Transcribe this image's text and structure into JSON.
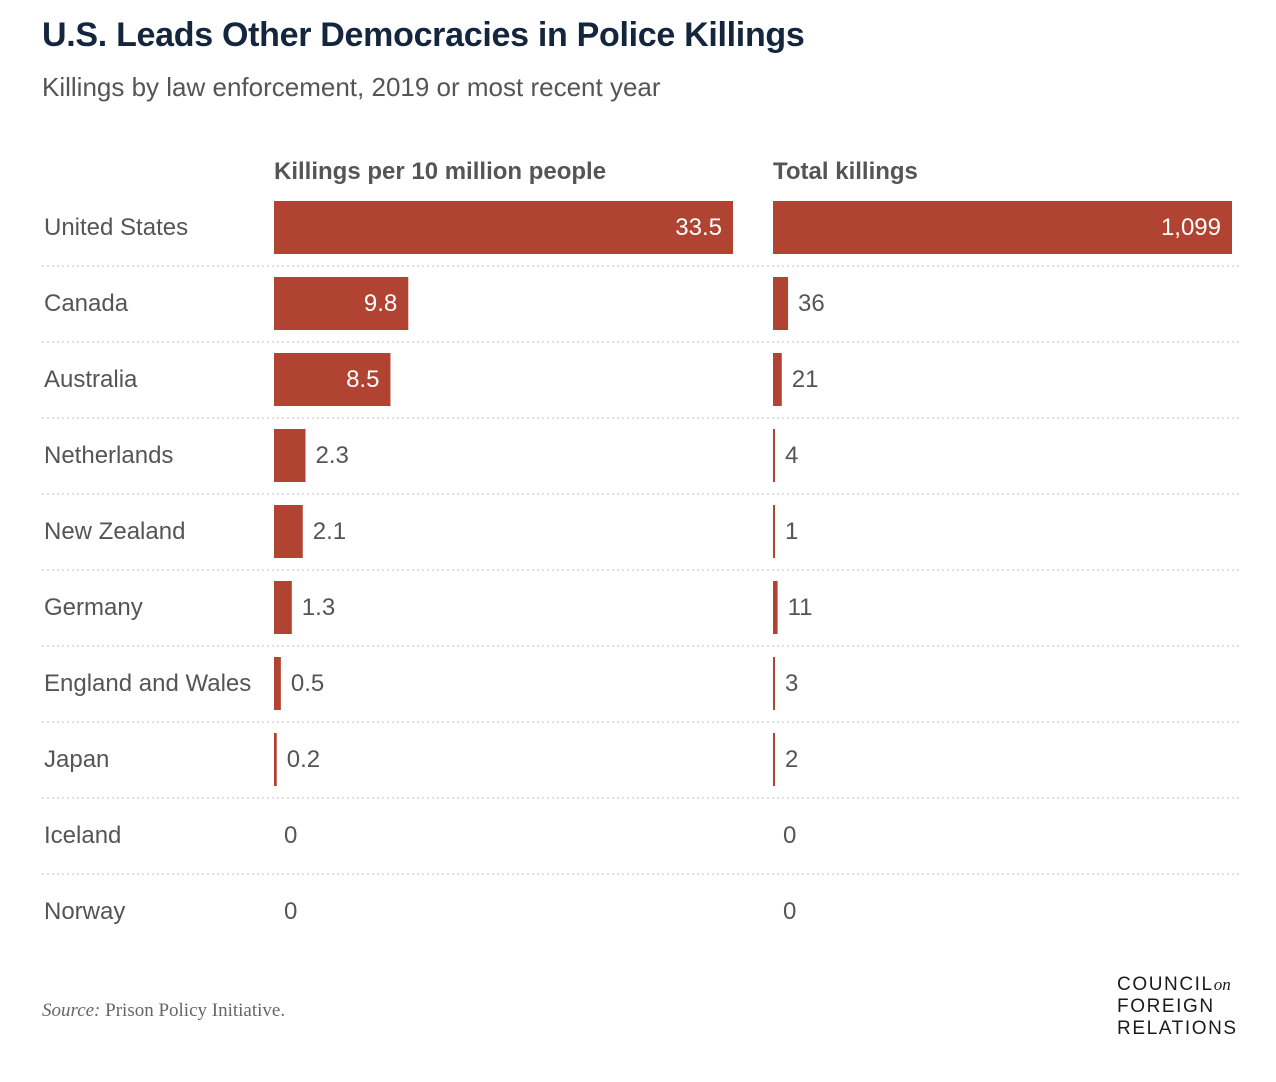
{
  "title": "U.S. Leads Other Democracies in Police Killings",
  "subtitle": "Killings by law enforcement, 2019 or most recent year",
  "source": {
    "label": "Source:",
    "text": "Prison Policy Initiative."
  },
  "logo": {
    "line1": "COUNCIL",
    "line1_suffix": "on",
    "line2": "FOREIGN",
    "line3": "RELATIONS"
  },
  "colors": {
    "bar": "#b04331",
    "label_inside": "#ffffff",
    "label_outside": "#555555",
    "divider": "#cccccc"
  },
  "chart_data": {
    "type": "bar",
    "orientation": "horizontal",
    "categories": [
      "United States",
      "Canada",
      "Australia",
      "Netherlands",
      "New Zealand",
      "Germany",
      "England and Wales",
      "Japan",
      "Iceland",
      "Norway"
    ],
    "series": [
      {
        "name": "Killings per 10 million people",
        "values": [
          33.5,
          9.8,
          8.5,
          2.3,
          2.1,
          1.3,
          0.5,
          0.2,
          0,
          0
        ],
        "labels": [
          "33.5",
          "9.8",
          "8.5",
          "2.3",
          "2.1",
          "1.3",
          "0.5",
          "0.2",
          "0",
          "0"
        ],
        "xlim": [
          0,
          33.5
        ]
      },
      {
        "name": "Total killings",
        "values": [
          1099,
          36,
          21,
          4,
          1,
          11,
          3,
          2,
          0,
          0
        ],
        "labels": [
          "1,099",
          "36",
          "21",
          "4",
          "1",
          "11",
          "3",
          "2",
          "0",
          "0"
        ],
        "xlim": [
          0,
          1099
        ]
      }
    ],
    "grid": false,
    "legend": "none"
  }
}
